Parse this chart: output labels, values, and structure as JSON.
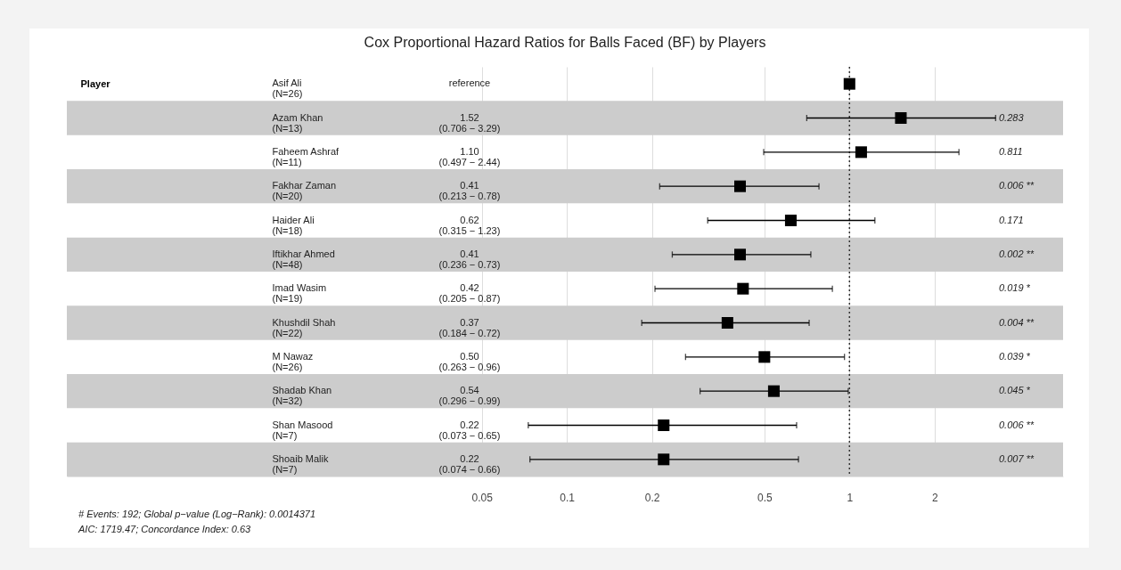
{
  "chart_data": {
    "type": "scatter",
    "orientation": "horizontal",
    "title": "Cox Proportional Hazard Ratios for Balls Faced (BF) by Players",
    "ylabel": "Player",
    "subtitle": "# Events: 192; Global p−value (Log−Rank): 0.0014371\nAIC: 1719.47; Concordance Index: 0.63",
    "categories": [
      "Asif Ali\n(N=26)",
      "Azam Khan\n(N=13)",
      "Faheem Ashraf\n(N=11)",
      "Fakhar Zaman\n(N=20)",
      "Haider Ali\n(N=18)",
      "Iftikhar Ahmed\n(N=48)",
      "Imad Wasim\n(N=19)",
      "Khushdil Shah\n(N=22)",
      "M Nawaz\n(N=26)",
      "Shadab Khan\n(N=32)",
      "Shan Masood\n(N=7)",
      "Shoaib Malik\n(N=7)"
    ],
    "values": [
      1,
      1.52,
      1.1,
      0.41,
      0.62,
      0.41,
      0.42,
      0.37,
      0.5,
      0.54,
      0.22,
      0.22
    ],
    "errors": [
      null,
      [
        0.706,
        3.29
      ],
      [
        0.497,
        2.44
      ],
      [
        0.213,
        0.78
      ],
      [
        0.315,
        1.23
      ],
      [
        0.236,
        0.73
      ],
      [
        0.205,
        0.87
      ],
      [
        0.184,
        0.72
      ],
      [
        0.263,
        0.96
      ],
      [
        0.296,
        0.99
      ],
      [
        0.073,
        0.65
      ],
      [
        0.074,
        0.66
      ]
    ],
    "color": "#000000",
    "marker": "square",
    "log": "x",
    "xlim": [
      0.0017,
      5.7
    ],
    "xticks": [
      0.05,
      0.1,
      0.2,
      0.5,
      1,
      2
    ],
    "grid": "x",
    "ref_lines": [
      {
        "axis": "x",
        "value": 1,
        "line_style": "dotted",
        "color": "#333333"
      }
    ],
    "bands": [
      {
        "axis": "y",
        "from": "Azam Khan\n(N=13)",
        "to": "Azam Khan\n(N=13)",
        "color": "#cccccc"
      },
      {
        "axis": "y",
        "from": "Fakhar Zaman\n(N=20)",
        "to": "Fakhar Zaman\n(N=20)",
        "color": "#cccccc"
      },
      {
        "axis": "y",
        "from": "Iftikhar Ahmed\n(N=48)",
        "to": "Iftikhar Ahmed\n(N=48)",
        "color": "#cccccc"
      },
      {
        "axis": "y",
        "from": "Khushdil Shah\n(N=22)",
        "to": "Khushdil Shah\n(N=22)",
        "color": "#cccccc"
      },
      {
        "axis": "y",
        "from": "Shadab Khan\n(N=32)",
        "to": "Shadab Khan\n(N=32)",
        "color": "#cccccc"
      },
      {
        "axis": "y",
        "from": "Shoaib Malik\n(N=7)",
        "to": "Shoaib Malik\n(N=7)",
        "color": "#cccccc"
      }
    ],
    "annotations": [
      "reference",
      "1.52\n(0.706 − 3.29)",
      "1.10\n(0.497 − 2.44)",
      "0.41\n(0.213 − 0.78)",
      "0.62\n(0.315 − 1.23)",
      "0.41\n(0.236 − 0.73)",
      "0.42\n(0.205 − 0.87)",
      "0.37\n(0.184 − 0.72)",
      "0.50\n(0.263 − 0.96)",
      "0.54\n(0.296 − 0.99)",
      "0.22\n(0.073 − 0.65)",
      "0.22\n(0.074 − 0.66)",
      "0.283",
      "0.811",
      "0.006 **",
      "0.171",
      "0.002 **",
      "0.019 *",
      "0.004 **",
      "0.039 *",
      "0.045 *",
      "0.006 **",
      "0.007 **"
    ]
  }
}
